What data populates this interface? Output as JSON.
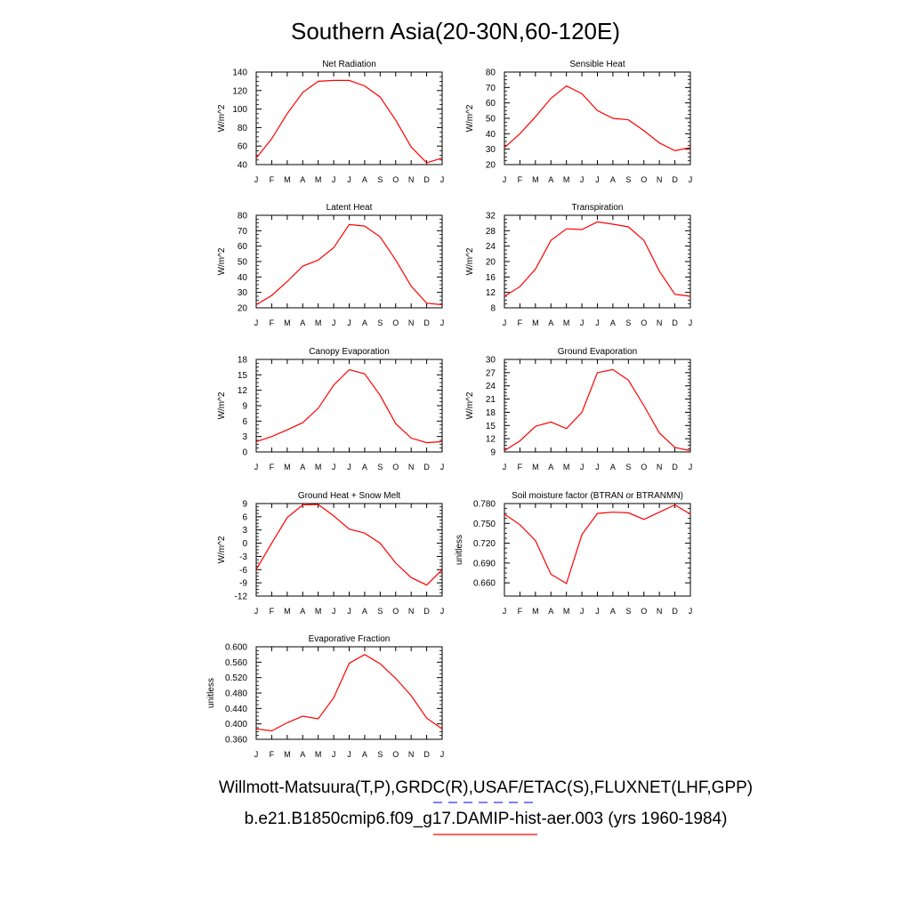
{
  "figure": {
    "title": "Southern Asia(20-30N,60-120E)",
    "legend": [
      {
        "label": "Willmott-Matsuura(T,P),GRDC(R),USAF/ETAC(S),FLUXNET(LHF,GPP)",
        "color": "#3333ff",
        "dash": true
      },
      {
        "label": "b.e21.B1850cmip6.f09_g17.DAMIP-hist-aer.003 (yrs 1960-1984)",
        "color": "#ff0000",
        "dash": false
      }
    ]
  },
  "chart_data": [
    {
      "type": "line",
      "title": "Net Radiation",
      "ylabel": "W/m^2",
      "categories": [
        "J",
        "F",
        "M",
        "A",
        "M",
        "J",
        "J",
        "A",
        "S",
        "O",
        "N",
        "D",
        "J"
      ],
      "ylim": [
        40,
        140
      ],
      "yticks": [
        "40",
        "60",
        "80",
        "100",
        "120",
        "140"
      ],
      "color": "#ff0000",
      "values": [
        47,
        68,
        95,
        118,
        130,
        131,
        131,
        125,
        113,
        88,
        59,
        42,
        47
      ]
    },
    {
      "type": "line",
      "title": "Sensible Heat",
      "ylabel": "W/m^2",
      "categories": [
        "J",
        "F",
        "M",
        "A",
        "M",
        "J",
        "J",
        "A",
        "S",
        "O",
        "N",
        "D",
        "J"
      ],
      "ylim": [
        20,
        80
      ],
      "yticks": [
        "20",
        "30",
        "40",
        "50",
        "60",
        "70",
        "80"
      ],
      "color": "#ff0000",
      "values": [
        31,
        40,
        51,
        63,
        71,
        66,
        55,
        50,
        49,
        42,
        34,
        29,
        31
      ]
    },
    {
      "type": "line",
      "title": "Latent Heat",
      "ylabel": "W/m^2",
      "categories": [
        "J",
        "F",
        "M",
        "A",
        "M",
        "J",
        "J",
        "A",
        "S",
        "O",
        "N",
        "D",
        "J"
      ],
      "ylim": [
        20,
        80
      ],
      "yticks": [
        "20",
        "30",
        "40",
        "50",
        "60",
        "70",
        "80"
      ],
      "color": "#ff0000",
      "values": [
        22,
        28,
        37,
        47,
        51,
        59,
        74,
        73,
        66,
        51,
        34,
        23,
        22
      ]
    },
    {
      "type": "line",
      "title": "Transpiration",
      "ylabel": "W/m^2",
      "categories": [
        "J",
        "F",
        "M",
        "A",
        "M",
        "J",
        "J",
        "A",
        "S",
        "O",
        "N",
        "D",
        "J"
      ],
      "ylim": [
        8,
        32
      ],
      "yticks": [
        "8",
        "12",
        "16",
        "20",
        "24",
        "28",
        "32"
      ],
      "color": "#ff0000",
      "values": [
        11,
        13.5,
        18,
        25.5,
        28.5,
        28.3,
        30.3,
        29.7,
        29,
        25.5,
        17.5,
        11.5,
        11
      ]
    },
    {
      "type": "line",
      "title": "Canopy Evaporation",
      "ylabel": "W/m^2",
      "categories": [
        "J",
        "F",
        "M",
        "A",
        "M",
        "J",
        "J",
        "A",
        "S",
        "O",
        "N",
        "D",
        "J"
      ],
      "ylim": [
        0,
        18
      ],
      "yticks": [
        "0",
        "3",
        "6",
        "9",
        "12",
        "15",
        "18"
      ],
      "color": "#ff0000",
      "values": [
        2,
        3,
        4.3,
        5.7,
        8.5,
        13,
        16,
        15.2,
        11,
        5.5,
        2.7,
        1.8,
        2
      ]
    },
    {
      "type": "line",
      "title": "Ground Evaporation",
      "ylabel": "W/m^2",
      "categories": [
        "J",
        "F",
        "M",
        "A",
        "M",
        "J",
        "J",
        "A",
        "S",
        "O",
        "N",
        "D",
        "J"
      ],
      "ylim": [
        9,
        30
      ],
      "yticks": [
        "9",
        "12",
        "15",
        "18",
        "21",
        "24",
        "27",
        "30"
      ],
      "color": "#ff0000",
      "values": [
        9.3,
        11.5,
        14.8,
        15.8,
        14.3,
        18,
        27,
        27.7,
        25.3,
        19.5,
        13.3,
        10,
        9.3
      ]
    },
    {
      "type": "line",
      "title": "Ground Heat + Snow Melt",
      "ylabel": "W/m^2",
      "categories": [
        "J",
        "F",
        "M",
        "A",
        "M",
        "J",
        "J",
        "A",
        "S",
        "O",
        "N",
        "D",
        "J"
      ],
      "ylim": [
        -12,
        9
      ],
      "yticks": [
        "-12",
        "-9",
        "-6",
        "-3",
        "0",
        "3",
        "6",
        "9"
      ],
      "color": "#ff0000",
      "values": [
        -6,
        0,
        5.8,
        8.7,
        8.8,
        6.2,
        3.2,
        2.3,
        0,
        -4.5,
        -7.8,
        -9.5,
        -6
      ]
    },
    {
      "type": "line",
      "title": "Soil moisture factor (BTRAN or BTRANMN)",
      "ylabel": "unitless",
      "categories": [
        "J",
        "F",
        "M",
        "A",
        "M",
        "J",
        "J",
        "A",
        "S",
        "O",
        "N",
        "D",
        "J"
      ],
      "ylim": [
        0.64,
        0.78
      ],
      "yticks": [
        "0.660",
        "0.690",
        "0.720",
        "0.750",
        "0.780"
      ],
      "color": "#ff0000",
      "values": [
        0.764,
        0.748,
        0.724,
        0.673,
        0.659,
        0.733,
        0.765,
        0.767,
        0.766,
        0.756,
        0.767,
        0.778,
        0.764
      ]
    },
    {
      "type": "line",
      "title": "Evaporative Fraction",
      "ylabel": "unitless",
      "categories": [
        "J",
        "F",
        "M",
        "A",
        "M",
        "J",
        "J",
        "A",
        "S",
        "O",
        "N",
        "D",
        "J"
      ],
      "ylim": [
        0.36,
        0.6
      ],
      "yticks": [
        "0.360",
        "0.400",
        "0.440",
        "0.480",
        "0.520",
        "0.560",
        "0.600"
      ],
      "color": "#ff0000",
      "values": [
        0.387,
        0.382,
        0.403,
        0.42,
        0.413,
        0.468,
        0.557,
        0.58,
        0.556,
        0.518,
        0.473,
        0.415,
        0.387
      ]
    }
  ]
}
